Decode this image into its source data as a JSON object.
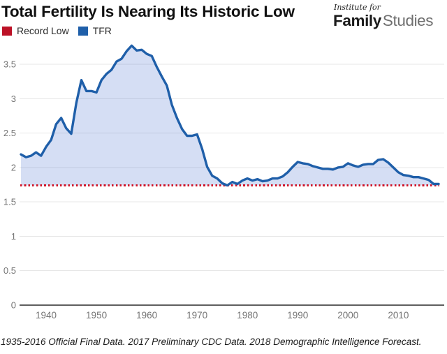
{
  "header": {
    "title": "Total Fertility Is Nearing Its Historic Low",
    "logo": {
      "top": "Institute for",
      "bold": "Family",
      "light": "Studies"
    }
  },
  "legend": {
    "items": [
      {
        "label": "Record Low",
        "color": "#bc1126"
      },
      {
        "label": "TFR",
        "color": "#1f5fa9"
      }
    ]
  },
  "footer": {
    "note": "1935-2016 Official Final Data. 2017 Preliminary CDC Data. 2018 Demographic Intelligence Forecast."
  },
  "chart_data": {
    "type": "area",
    "title": "Total Fertility Is Nearing Its Historic Low",
    "xlabel": "",
    "ylabel": "",
    "xlim": [
      1935,
      2018
    ],
    "ylim": [
      0,
      3.9
    ],
    "x_ticks": [
      1940,
      1950,
      1960,
      1970,
      1980,
      1990,
      2000,
      2010
    ],
    "y_ticks": [
      0,
      0.5,
      1,
      1.5,
      2,
      2.5,
      3,
      3.5
    ],
    "grid": true,
    "legend_position": "top-left",
    "grid_color": "#e7e7e7",
    "axis_color": "#5f5f5f",
    "tick_color": "#757575",
    "record_low": {
      "name": "Record Low",
      "value": 1.74,
      "color": "#d01428",
      "style": "dotted"
    },
    "x": [
      1935,
      1936,
      1937,
      1938,
      1939,
      1940,
      1941,
      1942,
      1943,
      1944,
      1945,
      1946,
      1947,
      1948,
      1949,
      1950,
      1951,
      1952,
      1953,
      1954,
      1955,
      1956,
      1957,
      1958,
      1959,
      1960,
      1961,
      1962,
      1963,
      1964,
      1965,
      1966,
      1967,
      1968,
      1969,
      1970,
      1971,
      1972,
      1973,
      1974,
      1975,
      1976,
      1977,
      1978,
      1979,
      1980,
      1981,
      1982,
      1983,
      1984,
      1985,
      1986,
      1987,
      1988,
      1989,
      1990,
      1991,
      1992,
      1993,
      1994,
      1995,
      1996,
      1997,
      1998,
      1999,
      2000,
      2001,
      2002,
      2003,
      2004,
      2005,
      2006,
      2007,
      2008,
      2009,
      2010,
      2011,
      2012,
      2013,
      2014,
      2015,
      2016,
      2017,
      2018
    ],
    "series": [
      {
        "name": "TFR",
        "color": "#1f5fa9",
        "fill": "rgba(47,90,200,0.20)",
        "values": [
          2.19,
          2.15,
          2.17,
          2.22,
          2.17,
          2.3,
          2.4,
          2.63,
          2.72,
          2.57,
          2.49,
          2.94,
          3.27,
          3.11,
          3.11,
          3.09,
          3.27,
          3.36,
          3.42,
          3.54,
          3.58,
          3.69,
          3.77,
          3.7,
          3.71,
          3.65,
          3.62,
          3.46,
          3.32,
          3.19,
          2.91,
          2.72,
          2.56,
          2.46,
          2.46,
          2.48,
          2.27,
          2.01,
          1.88,
          1.84,
          1.77,
          1.74,
          1.79,
          1.76,
          1.81,
          1.84,
          1.81,
          1.83,
          1.8,
          1.81,
          1.84,
          1.84,
          1.87,
          1.93,
          2.01,
          2.08,
          2.06,
          2.05,
          2.02,
          2.0,
          1.98,
          1.98,
          1.97,
          2.0,
          2.01,
          2.06,
          2.03,
          2.01,
          2.04,
          2.05,
          2.05,
          2.11,
          2.12,
          2.07,
          2.0,
          1.93,
          1.89,
          1.88,
          1.86,
          1.86,
          1.84,
          1.82,
          1.76,
          1.76
        ]
      }
    ]
  }
}
